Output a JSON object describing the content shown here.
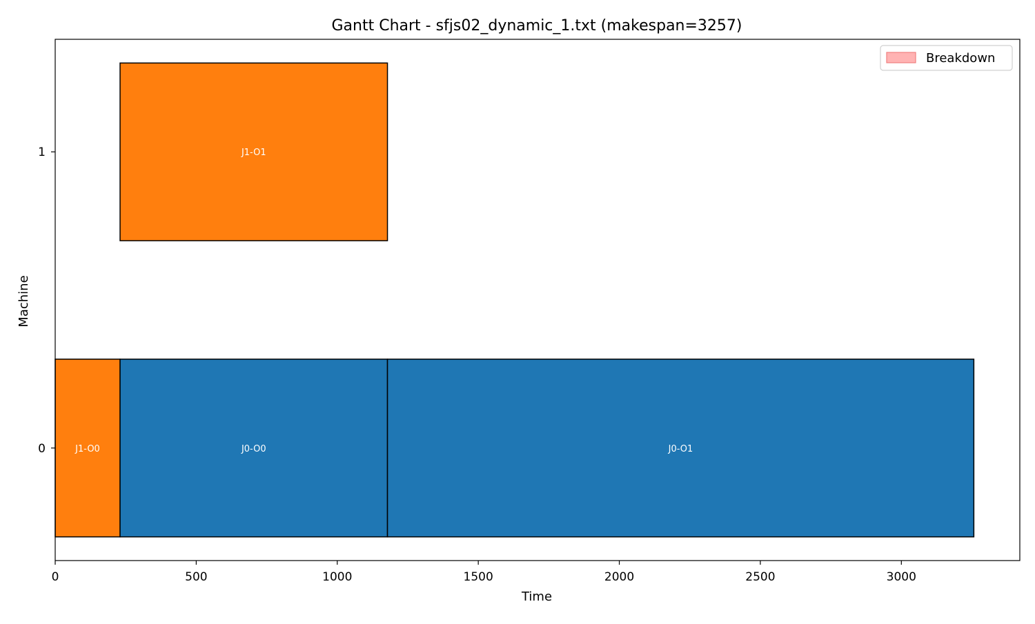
{
  "chart_data": {
    "type": "gantt",
    "title": "Gantt Chart - sfjs02_dynamic_1.txt (makespan=3257)",
    "xlabel": "Time",
    "ylabel": "Machine",
    "xlim": [
      0,
      3420
    ],
    "ylim": [
      -0.38,
      1.38
    ],
    "x_ticks": [
      0,
      500,
      1000,
      1500,
      2000,
      2500,
      3000
    ],
    "y_ticks": [
      0,
      1
    ],
    "bar_height": 0.6,
    "tasks": [
      {
        "machine": 0,
        "start": 0,
        "end": 230,
        "label": "J1-O0",
        "color": "#ff7f0e"
      },
      {
        "machine": 0,
        "start": 230,
        "end": 1178,
        "label": "J0-O0",
        "color": "#1f77b4"
      },
      {
        "machine": 0,
        "start": 1178,
        "end": 3257,
        "label": "J0-O1",
        "color": "#1f77b4"
      },
      {
        "machine": 1,
        "start": 230,
        "end": 1178,
        "label": "J1-O1",
        "color": "#ff7f0e"
      }
    ],
    "legend": {
      "position": "top-right",
      "entries": [
        {
          "label": "Breakdown",
          "color": "#ffb3b3",
          "edge": "#f08080"
        }
      ]
    },
    "grid": false
  }
}
